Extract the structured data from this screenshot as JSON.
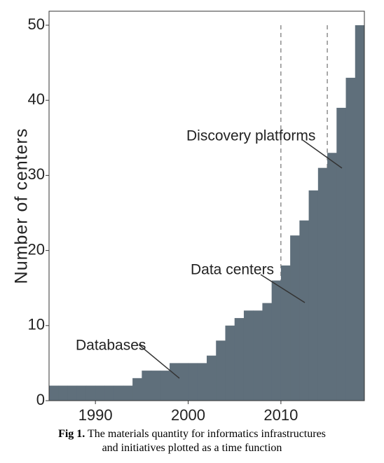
{
  "chart_data": {
    "type": "step-area",
    "ylabel": "Number of centers",
    "x": [
      1985,
      1986,
      1987,
      1988,
      1989,
      1990,
      1991,
      1992,
      1993,
      1994,
      1995,
      1996,
      1997,
      1998,
      1999,
      2000,
      2001,
      2002,
      2003,
      2004,
      2005,
      2006,
      2007,
      2008,
      2009,
      2010,
      2011,
      2012,
      2013,
      2014,
      2015,
      2016,
      2017,
      2018
    ],
    "values": [
      2,
      2,
      2,
      2,
      2,
      2,
      2,
      2,
      2,
      3,
      4,
      4,
      4,
      5,
      5,
      5,
      5,
      6,
      8,
      10,
      11,
      12,
      12,
      13,
      16,
      18,
      22,
      24,
      28,
      31,
      33,
      39,
      43,
      50
    ],
    "color": "#5f6f7b",
    "xlim": [
      1985,
      2019
    ],
    "xticks": [
      1990,
      2000,
      2010
    ],
    "ylim": [
      0,
      50
    ],
    "yticks": [
      0,
      10,
      20,
      30,
      40,
      50
    ],
    "reference_lines": [
      2010,
      2015
    ],
    "annotations": [
      "Databases",
      "Data centers",
      "Discovery platforms"
    ]
  },
  "caption": {
    "label": "Fig 1.",
    "lines": [
      "The materials quantity for informatics infrastructures",
      "and initiatives plotted as a time function"
    ]
  }
}
